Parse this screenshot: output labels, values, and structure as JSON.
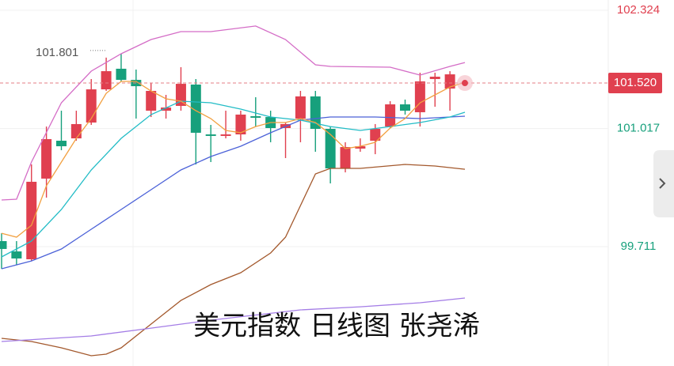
{
  "chart_data": {
    "type": "candlestick",
    "title": "美元指数 日线图 张尧浠",
    "ylim": [
      98.391,
      102.438
    ],
    "yticks": [
      99.711,
      101.017,
      102.324
    ],
    "last_price": {
      "value": 101.52,
      "label": "101.520"
    },
    "up_color": "#e0404f",
    "down_color": "#17a07c",
    "candles": {
      "open": [
        99.772,
        99.658,
        99.571,
        100.463,
        100.882,
        100.908,
        101.083,
        101.45,
        101.678,
        101.555,
        101.214,
        101.214,
        101.267,
        101.503,
        100.952,
        100.935,
        100.952,
        101.153,
        101.144,
        101.022,
        101.127,
        101.372,
        101.013,
        100.576,
        100.795,
        100.882,
        101.039,
        101.284,
        101.197,
        101.564,
        101.459
      ],
      "high": [
        99.859,
        99.772,
        100.62,
        101.039,
        101.214,
        101.214,
        101.564,
        101.801,
        101.844,
        101.669,
        101.52,
        101.389,
        101.695,
        101.564,
        101.057,
        101.214,
        101.214,
        101.363,
        101.214,
        101.083,
        101.433,
        101.433,
        101.039,
        100.865,
        100.908,
        101.066,
        101.319,
        101.337,
        101.634,
        101.634,
        101.651
      ],
      "low": [
        99.466,
        99.51,
        99.553,
        100.253,
        100.777,
        100.882,
        101.057,
        101.433,
        101.538,
        101.127,
        101.144,
        101.127,
        101.214,
        100.62,
        100.646,
        100.908,
        100.882,
        101.039,
        100.865,
        100.69,
        100.865,
        100.76,
        100.41,
        100.532,
        100.76,
        100.733,
        101.022,
        101.171,
        101.039,
        101.258,
        101.214
      ],
      "close": [
        99.685,
        99.58,
        100.428,
        100.9,
        100.821,
        101.066,
        101.45,
        101.651,
        101.555,
        101.485,
        101.433,
        101.249,
        101.511,
        100.97,
        100.935,
        100.952,
        101.171,
        101.136,
        101.022,
        101.066,
        101.372,
        101.013,
        100.576,
        100.812,
        100.821,
        101.013,
        101.284,
        101.214,
        101.538,
        101.59,
        101.616
      ]
    },
    "series": [
      {
        "color": "#d46cc6",
        "x": [
          0,
          1,
          2,
          4,
          6,
          8,
          10,
          12,
          14,
          17,
          19,
          21,
          22,
          26,
          28,
          30,
          31
        ],
        "values": [
          100.227,
          100.235,
          100.646,
          101.302,
          101.651,
          101.844,
          102.001,
          102.088,
          102.088,
          102.15,
          102.001,
          101.721,
          101.704,
          101.695,
          101.608,
          101.704,
          101.747
        ]
      },
      {
        "color": "#a3582c",
        "x": [
          0,
          2,
          4,
          6,
          7,
          8,
          10,
          12,
          14,
          16,
          18,
          19,
          20,
          21,
          22,
          24,
          27,
          29,
          31
        ],
        "values": [
          98.697,
          98.662,
          98.592,
          98.505,
          98.522,
          98.592,
          98.854,
          99.116,
          99.291,
          99.422,
          99.641,
          99.816,
          100.165,
          100.515,
          100.576,
          100.576,
          100.62,
          100.602,
          100.567
        ]
      },
      {
        "color": "#a47de6",
        "x": [
          0,
          6,
          10,
          14,
          20,
          24,
          28,
          31
        ],
        "values": [
          98.662,
          98.723,
          98.81,
          98.898,
          99.012,
          99.046,
          99.09,
          99.143
        ]
      },
      {
        "color": "#4c62d8",
        "x": [
          0,
          2,
          4,
          6,
          8,
          10,
          12,
          14,
          16,
          18,
          20,
          22,
          25,
          28,
          31
        ],
        "values": [
          99.466,
          99.553,
          99.685,
          99.903,
          100.122,
          100.34,
          100.559,
          100.707,
          100.821,
          100.97,
          101.109,
          101.144,
          101.144,
          101.127,
          101.153
        ]
      },
      {
        "color": "#22bcc6",
        "x": [
          0,
          2,
          4,
          6,
          8,
          10,
          12,
          14,
          16,
          18,
          20,
          22,
          24,
          26,
          28,
          30,
          31
        ],
        "values": [
          99.597,
          99.772,
          100.122,
          100.559,
          100.908,
          101.171,
          101.319,
          101.302,
          101.232,
          101.144,
          101.109,
          101.039,
          100.996,
          101.039,
          101.083,
          101.144,
          101.197
        ]
      },
      {
        "color": "#f2a040",
        "x": [
          0,
          1,
          2,
          3,
          4,
          5,
          6,
          7,
          8,
          9,
          10,
          11,
          12,
          13,
          14,
          15,
          16,
          17,
          18,
          19,
          20,
          21,
          22,
          23,
          24,
          25,
          26,
          27,
          28,
          29,
          30,
          31
        ],
        "values": [
          99.859,
          99.816,
          99.947,
          100.384,
          100.646,
          100.908,
          101.127,
          101.407,
          101.538,
          101.538,
          101.433,
          101.345,
          101.319,
          101.214,
          101.127,
          100.996,
          100.97,
          101.039,
          101.083,
          101.083,
          101.127,
          101.083,
          100.952,
          100.795,
          100.821,
          100.865,
          101.022,
          101.127,
          101.302,
          101.389,
          101.476,
          101.529
        ]
      }
    ]
  }
}
